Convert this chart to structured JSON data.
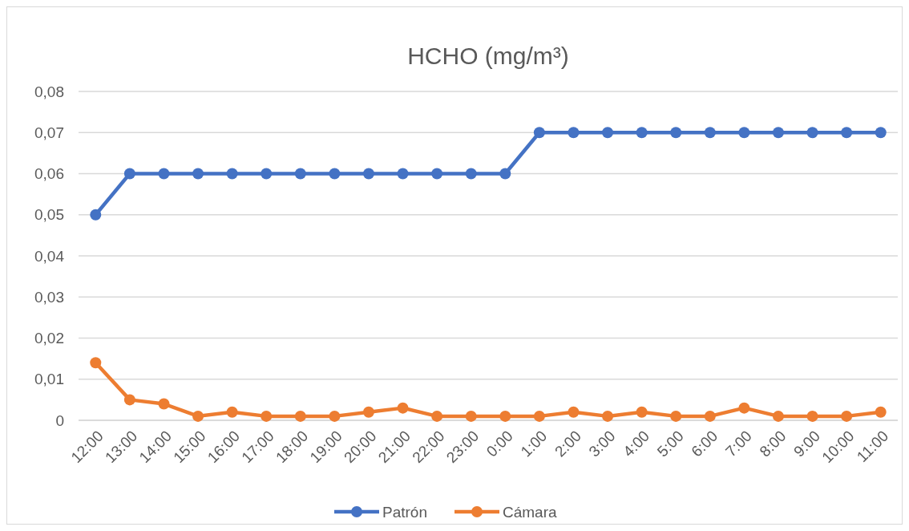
{
  "chart_data": {
    "type": "line",
    "title": "HCHO (mg/m³)",
    "categories": [
      "12:00",
      "13:00",
      "14:00",
      "15:00",
      "16:00",
      "17:00",
      "18:00",
      "19:00",
      "20:00",
      "21:00",
      "22:00",
      "23:00",
      "0:00",
      "1:00",
      "2:00",
      "3:00",
      "4:00",
      "5:00",
      "6:00",
      "7:00",
      "8:00",
      "9:00",
      "10:00",
      "11:00"
    ],
    "series": [
      {
        "name": "Patrón",
        "color": "#4472c4",
        "values": [
          0.05,
          0.06,
          0.06,
          0.06,
          0.06,
          0.06,
          0.06,
          0.06,
          0.06,
          0.06,
          0.06,
          0.06,
          0.06,
          0.07,
          0.07,
          0.07,
          0.07,
          0.07,
          0.07,
          0.07,
          0.07,
          0.07,
          0.07,
          0.07
        ]
      },
      {
        "name": "Cámara",
        "color": "#ed7d31",
        "values": [
          0.014,
          0.005,
          0.004,
          0.001,
          0.002,
          0.001,
          0.001,
          0.001,
          0.002,
          0.003,
          0.001,
          0.001,
          0.001,
          0.001,
          0.002,
          0.001,
          0.002,
          0.001,
          0.001,
          0.003,
          0.001,
          0.001,
          0.001,
          0.002
        ]
      }
    ],
    "ylim": [
      0,
      0.08
    ],
    "yticks": [
      0,
      {
        "value": 0.01,
        "label": "0,01"
      },
      {
        "value": 0.02,
        "label": "0,02"
      },
      {
        "value": 0.03,
        "label": "0,03"
      },
      {
        "value": 0.04,
        "label": "0,04"
      },
      {
        "value": 0.05,
        "label": "0,05"
      },
      {
        "value": 0.06,
        "label": "0,06"
      },
      {
        "value": 0.07,
        "label": "0,07"
      },
      {
        "value": 0.08,
        "label": "0,08"
      }
    ],
    "grid": "y",
    "legend": "bottom",
    "marker": "circle",
    "line_style": "solid"
  }
}
